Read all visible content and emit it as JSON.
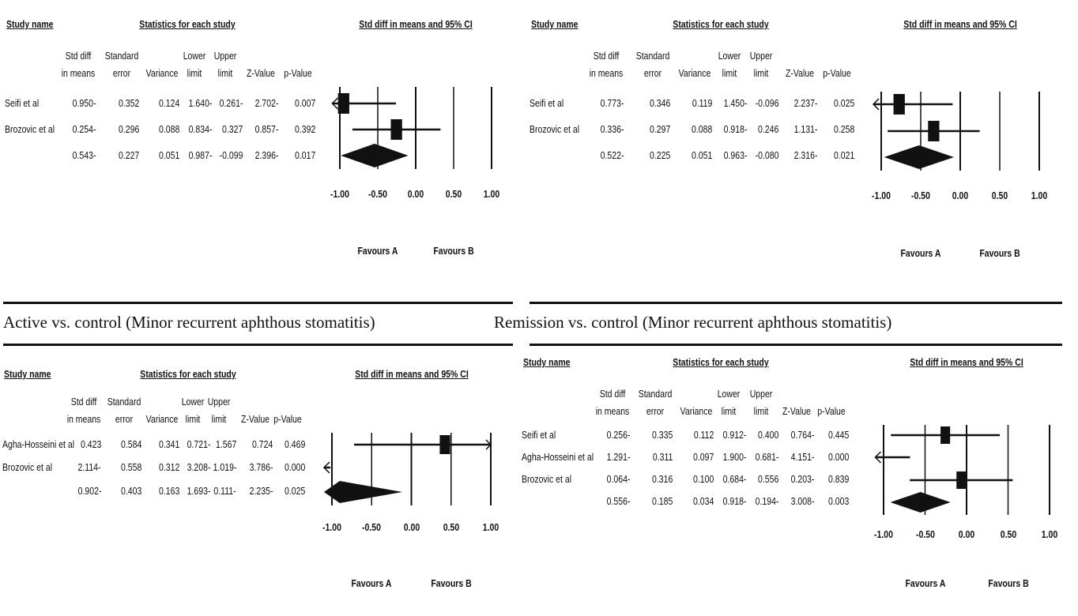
{
  "captions": {
    "left": "Active vs. control (Minor recurrent aphthous stomatitis)",
    "right": "Remission vs. control (Minor recurrent aphthous stomatitis)"
  },
  "chart_data": [
    {
      "type": "forest",
      "panel": "top-left",
      "title": "Std diff in means and 95% CI",
      "headers": {
        "study": "Study name",
        "stats": "Statistics for each study",
        "cols": [
          [
            "Std diff",
            "in means"
          ],
          [
            "Standard",
            "error"
          ],
          [
            "",
            "Variance"
          ],
          [
            "Lower",
            "limit"
          ],
          [
            "Upper",
            "limit"
          ],
          [
            "",
            "Z-Value"
          ],
          [
            "",
            "p-Value"
          ]
        ]
      },
      "rows": [
        {
          "name": "Seifi et al",
          "cells": [
            "0.950-",
            "0.352",
            "0.124",
            "1.640-",
            "0.261-",
            "2.702-",
            "0.007"
          ],
          "est": -0.95,
          "lo": -1.64,
          "hi": -0.261
        },
        {
          "name": "Brozovic et al",
          "cells": [
            "0.254-",
            "0.296",
            "0.088",
            "0.834-",
            "0.327",
            "0.857-",
            "0.392"
          ],
          "est": -0.254,
          "lo": -0.834,
          "hi": 0.327
        },
        {
          "name": "",
          "cells": [
            "0.543-",
            "0.227",
            "0.051",
            "0.987-",
            "-0.099",
            "2.396-",
            "0.017"
          ],
          "est": -0.543,
          "lo": -0.987,
          "hi": -0.099,
          "summary": true
        }
      ],
      "xlim": [
        -1.0,
        1.0
      ],
      "ticks": [
        "-1.00",
        "-0.50",
        "0.00",
        "0.50",
        "1.00"
      ],
      "favours": [
        "Favours A",
        "Favours B"
      ]
    },
    {
      "type": "forest",
      "panel": "top-right",
      "title": "Std diff in means and 95% CI",
      "headers": {
        "study": "Study name",
        "stats": "Statistics for each study",
        "cols": [
          [
            "Std diff",
            "in means"
          ],
          [
            "Standard",
            "error"
          ],
          [
            "",
            "Variance"
          ],
          [
            "Lower",
            "limit"
          ],
          [
            "Upper",
            "limit"
          ],
          [
            "",
            "Z-Value"
          ],
          [
            "",
            "p-Value"
          ]
        ]
      },
      "rows": [
        {
          "name": "Seifi et al",
          "cells": [
            "0.773-",
            "0.346",
            "0.119",
            "1.450-",
            "-0.096",
            "2.237-",
            "0.025"
          ],
          "est": -0.773,
          "lo": -1.45,
          "hi": -0.096
        },
        {
          "name": "Brozovic et al",
          "cells": [
            "0.336-",
            "0.297",
            "0.088",
            "0.918-",
            "0.246",
            "1.131-",
            "0.258"
          ],
          "est": -0.336,
          "lo": -0.918,
          "hi": 0.246
        },
        {
          "name": "",
          "cells": [
            "0.522-",
            "0.225",
            "0.051",
            "0.963-",
            "-0.080",
            "2.316-",
            "0.021"
          ],
          "est": -0.522,
          "lo": -0.963,
          "hi": -0.08,
          "summary": true
        }
      ],
      "xlim": [
        -1.0,
        1.0
      ],
      "ticks": [
        "-1.00",
        "-0.50",
        "0.00",
        "0.50",
        "1.00"
      ],
      "favours": [
        "Favours A",
        "Favours B"
      ]
    },
    {
      "type": "forest",
      "panel": "bottom-left",
      "title": "Std diff in means and 95% CI",
      "headers": {
        "study": "Study name",
        "stats": "Statistics for each study",
        "cols": [
          [
            "Std diff",
            "in means"
          ],
          [
            "Standard",
            "error"
          ],
          [
            "",
            "Variance"
          ],
          [
            "Lower",
            "limit"
          ],
          [
            "Upper",
            "limit"
          ],
          [
            "",
            "Z-Value"
          ],
          [
            "",
            "p-Value"
          ]
        ]
      },
      "rows": [
        {
          "name": "Agha-Hosseini et al",
          "cells": [
            "0.423",
            "0.584",
            "0.341",
            "0.721-",
            "1.567",
            "0.724",
            "0.469"
          ],
          "est": 0.423,
          "lo": -0.721,
          "hi": 1.567
        },
        {
          "name": "Brozovic et al",
          "cells": [
            "2.114-",
            "0.558",
            "0.312",
            "3.208-",
            "1.019-",
            "3.786-",
            "0.000"
          ],
          "est": -2.114,
          "lo": -3.208,
          "hi": -1.019
        },
        {
          "name": "",
          "cells": [
            "0.902-",
            "0.403",
            "0.163",
            "1.693-",
            "0.111-",
            "2.235-",
            "0.025"
          ],
          "est": -0.902,
          "lo": -1.693,
          "hi": -0.111,
          "summary": true
        }
      ],
      "xlim": [
        -1.0,
        1.0
      ],
      "ticks": [
        "-1.00",
        "-0.50",
        "0.00",
        "0.50",
        "1.00"
      ],
      "favours": [
        "Favours A",
        "Favours B"
      ]
    },
    {
      "type": "forest",
      "panel": "bottom-right",
      "title": "Std diff in means and 95% CI",
      "headers": {
        "study": "Study name",
        "stats": "Statistics for each study",
        "cols": [
          [
            "Std diff",
            "in means"
          ],
          [
            "Standard",
            "error"
          ],
          [
            "",
            "Variance"
          ],
          [
            "Lower",
            "limit"
          ],
          [
            "Upper",
            "limit"
          ],
          [
            "",
            "Z-Value"
          ],
          [
            "",
            "p-Value"
          ]
        ]
      },
      "rows": [
        {
          "name": "Seifi et al",
          "cells": [
            "0.256-",
            "0.335",
            "0.112",
            "0.912-",
            "0.400",
            "0.764-",
            "0.445"
          ],
          "est": -0.256,
          "lo": -0.912,
          "hi": 0.4
        },
        {
          "name": "Agha-Hosseini et al",
          "cells": [
            "1.291-",
            "0.311",
            "0.097",
            "1.900-",
            "0.681-",
            "4.151-",
            "0.000"
          ],
          "est": -1.291,
          "lo": -1.9,
          "hi": -0.681
        },
        {
          "name": "Brozovic et al",
          "cells": [
            "0.064-",
            "0.316",
            "0.100",
            "0.684-",
            "0.556",
            "0.203-",
            "0.839"
          ],
          "est": -0.064,
          "lo": -0.684,
          "hi": 0.556
        },
        {
          "name": "",
          "cells": [
            "0.556-",
            "0.185",
            "0.034",
            "0.918-",
            "0.194-",
            "3.008-",
            "0.003"
          ],
          "est": -0.556,
          "lo": -0.918,
          "hi": -0.194,
          "summary": true
        }
      ],
      "xlim": [
        -1.0,
        1.0
      ],
      "ticks": [
        "-1.00",
        "-0.50",
        "0.00",
        "0.50",
        "1.00"
      ],
      "favours": [
        "Favours A",
        "Favours B"
      ]
    }
  ]
}
